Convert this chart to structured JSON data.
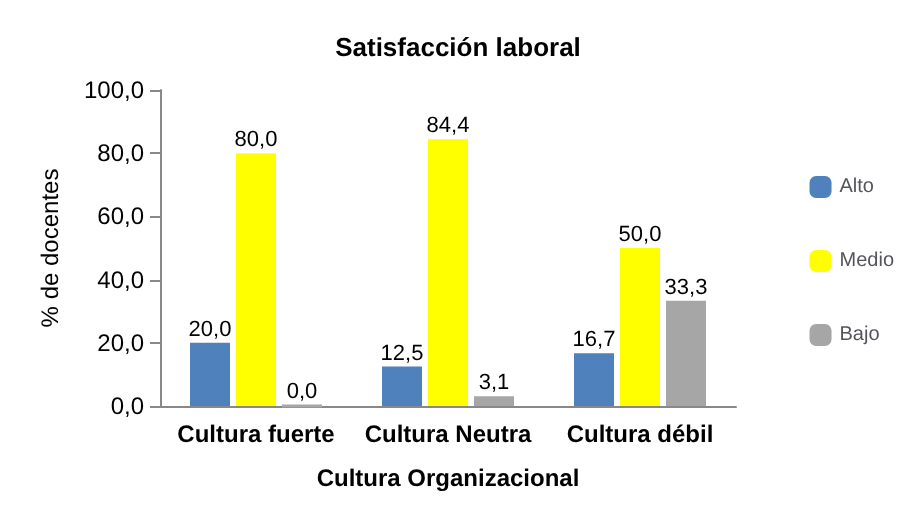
{
  "chart_data": {
    "type": "bar",
    "title": "Satisfacción laboral",
    "xlabel": "Cultura Organizacional",
    "ylabel": "% de docentes",
    "categories": [
      "Cultura fuerte",
      "Cultura Neutra",
      "Cultura débil"
    ],
    "series": [
      {
        "name": "Alto",
        "color": "#4f81bd",
        "values": [
          20.0,
          12.5,
          16.7
        ],
        "value_labels": [
          "20,0",
          "12,5",
          "16,7"
        ]
      },
      {
        "name": "Medio",
        "color": "#ffff00",
        "values": [
          80.0,
          84.4,
          50.0
        ],
        "value_labels": [
          "80,0",
          "84,4",
          "50,0"
        ]
      },
      {
        "name": "Bajo",
        "color": "#a6a6a6",
        "values": [
          0.0,
          3.1,
          33.3
        ],
        "value_labels": [
          "0,0",
          "3,1",
          "33,3"
        ]
      }
    ],
    "ylim": [
      0,
      100
    ],
    "yticks": [
      {
        "value": 0,
        "label": "0,0"
      },
      {
        "value": 20,
        "label": "20,0"
      },
      {
        "value": 40,
        "label": "40,0"
      },
      {
        "value": 60,
        "label": "60,0"
      },
      {
        "value": 80,
        "label": "80,0"
      },
      {
        "value": 100,
        "label": "100,0"
      }
    ],
    "grid": false,
    "legend": "right"
  }
}
